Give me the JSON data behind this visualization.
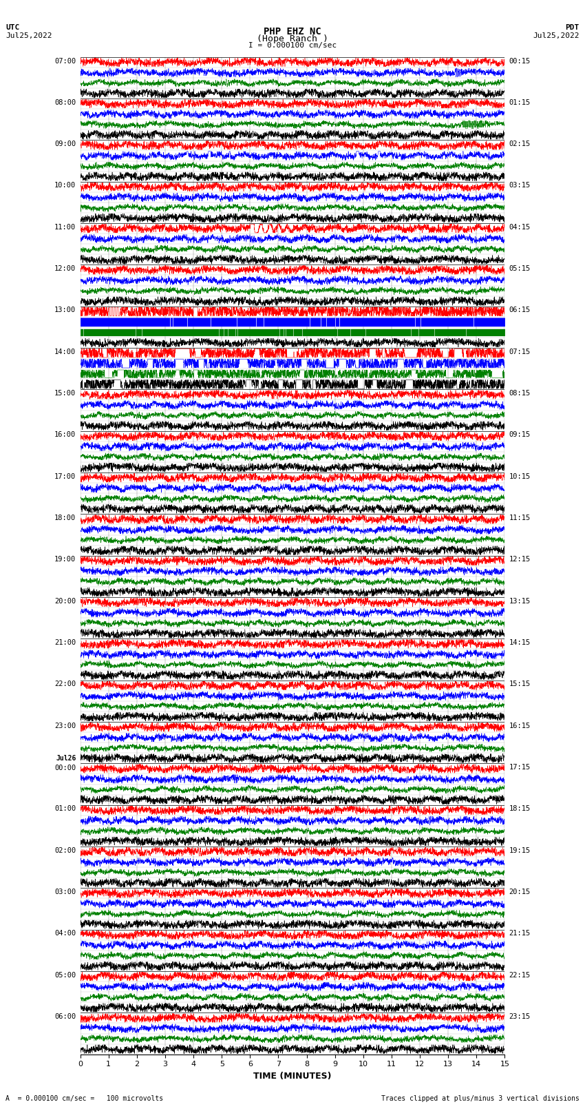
{
  "title_line1": "PHP EHZ NC",
  "title_line2": "(Hope Ranch )",
  "title_scale": "I = 0.000100 cm/sec",
  "left_header1": "UTC",
  "left_header2": "Jul25,2022",
  "right_header1": "PDT",
  "right_header2": "Jul25,2022",
  "xlabel": "TIME (MINUTES)",
  "footer_left": "A  = 0.000100 cm/sec =   100 microvolts",
  "footer_right": "Traces clipped at plus/minus 3 vertical divisions",
  "xlim": [
    0,
    15
  ],
  "xticks": [
    0,
    1,
    2,
    3,
    4,
    5,
    6,
    7,
    8,
    9,
    10,
    11,
    12,
    13,
    14,
    15
  ],
  "bg_color": "white",
  "hour_labels_left": [
    "07:00",
    "08:00",
    "09:00",
    "10:00",
    "11:00",
    "12:00",
    "13:00",
    "14:00",
    "15:00",
    "16:00",
    "17:00",
    "18:00",
    "19:00",
    "20:00",
    "21:00",
    "22:00",
    "23:00",
    "Jul26\n00:00",
    "01:00",
    "02:00",
    "03:00",
    "04:00",
    "05:00",
    "06:00"
  ],
  "hour_labels_right": [
    "00:15",
    "01:15",
    "02:15",
    "03:15",
    "04:15",
    "05:15",
    "06:15",
    "07:15",
    "08:15",
    "09:15",
    "10:15",
    "11:15",
    "12:15",
    "13:15",
    "14:15",
    "15:15",
    "16:15",
    "17:15",
    "18:15",
    "19:15",
    "20:15",
    "21:15",
    "22:15",
    "23:15"
  ],
  "n_hour_blocks": 24,
  "trace_colors": [
    "red",
    "blue",
    "green",
    "black"
  ],
  "trace_amplitudes": [
    0.42,
    0.42,
    0.38,
    0.42
  ],
  "trace_noise": [
    0.18,
    0.15,
    0.12,
    0.18
  ],
  "n_samples": 3000,
  "special_filled_blue_blocks": [
    6,
    7
  ],
  "special_filled_green_blocks": [
    6
  ],
  "special_spiky_blocks": [
    7
  ],
  "big_event_block": 4,
  "big_event_color_idx": 0
}
